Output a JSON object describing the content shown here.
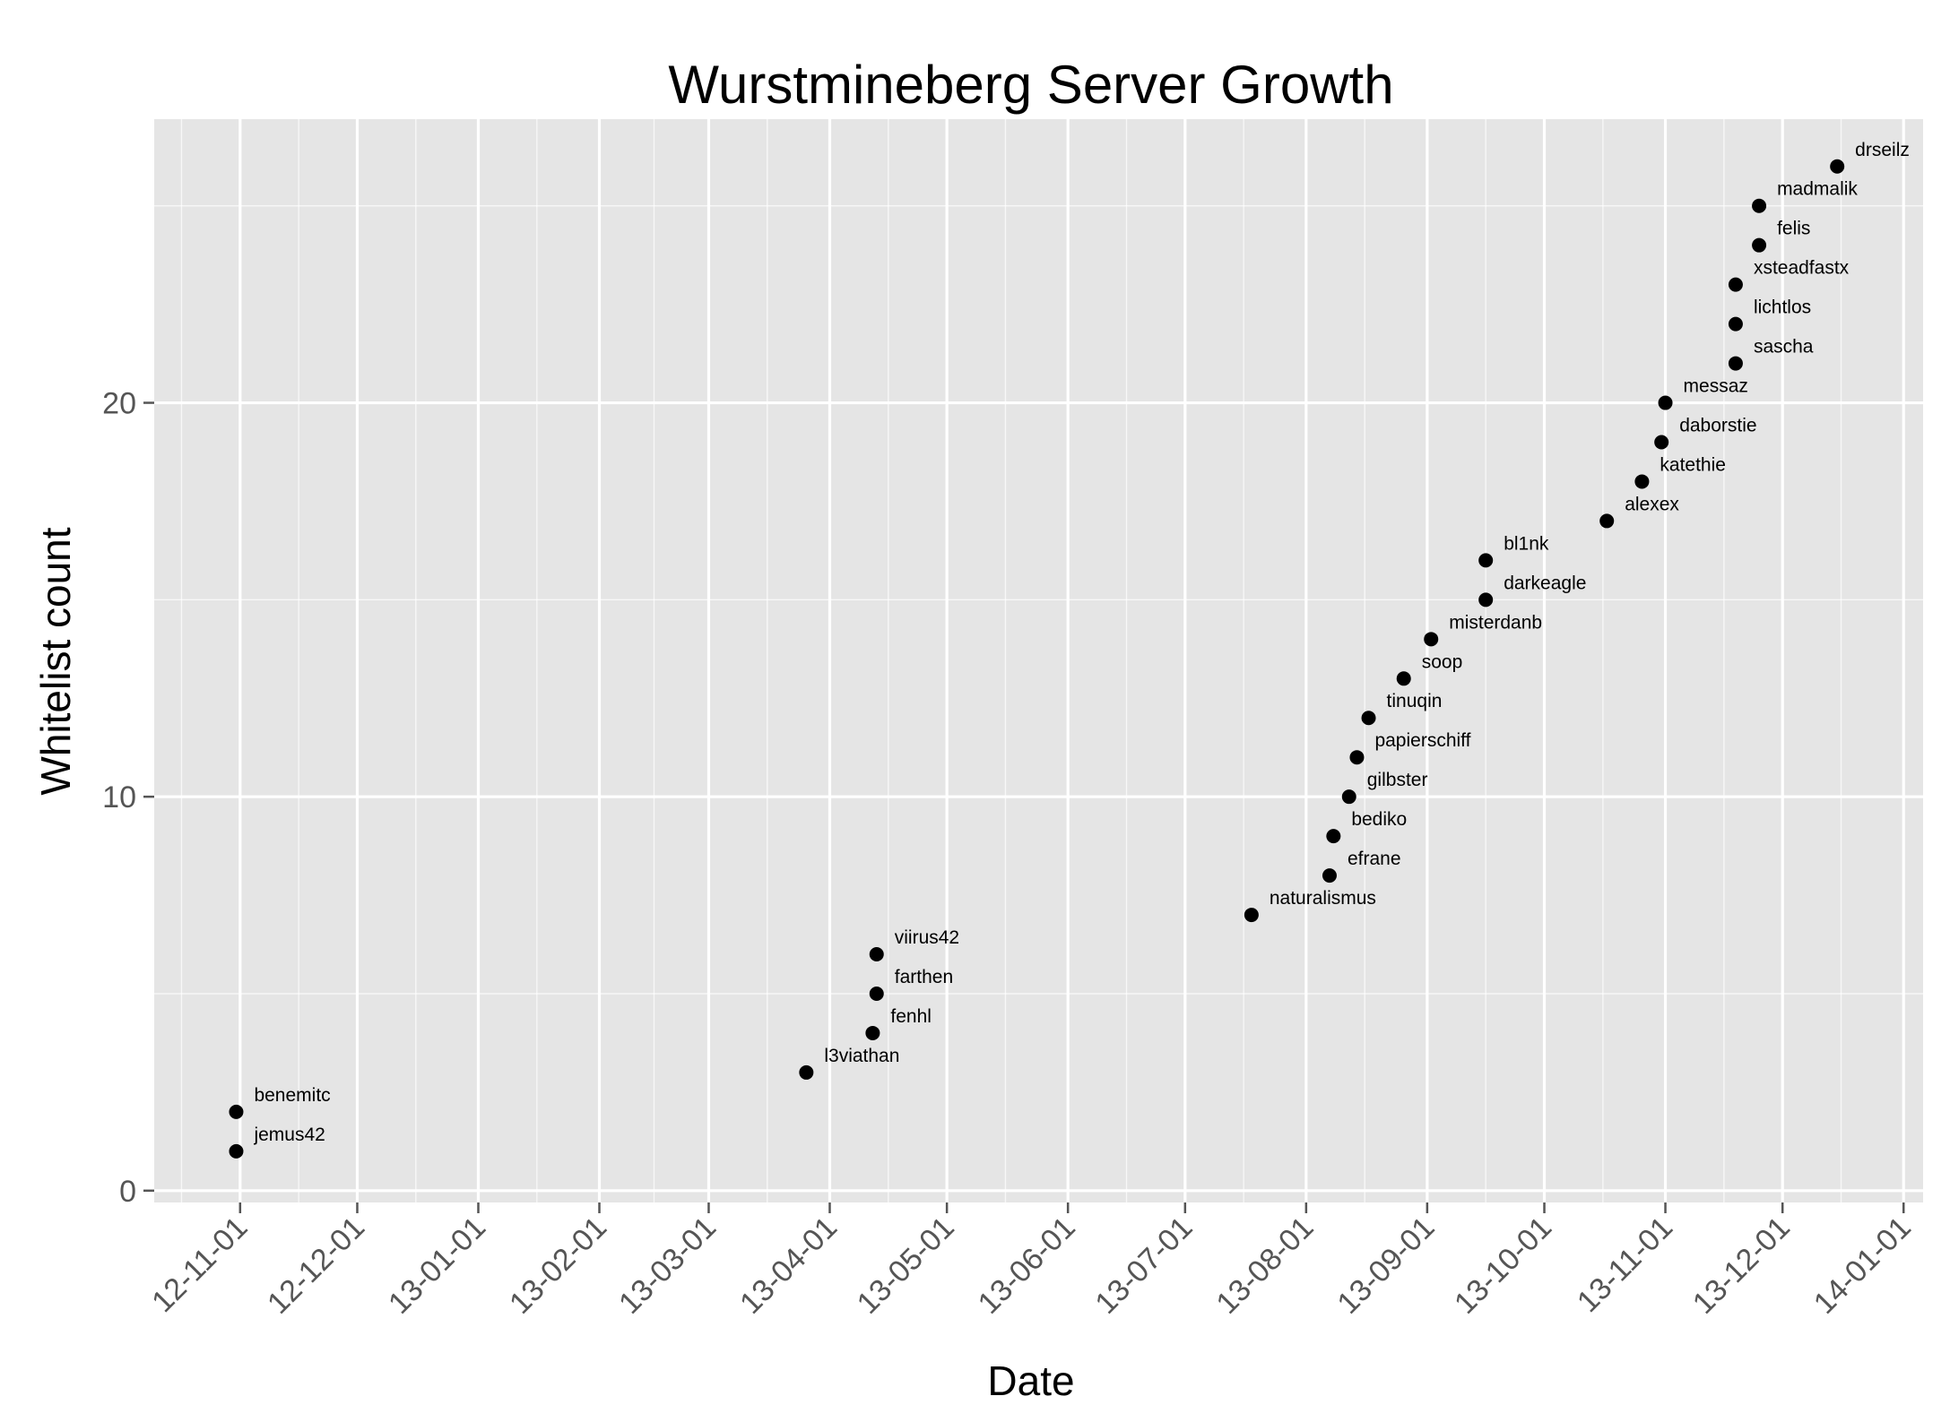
{
  "chart_data": {
    "type": "scatter",
    "title": "Wurstmineberg Server Growth",
    "xlabel": "Date",
    "ylabel": "Whitelist count",
    "xlim": [
      "2012-10-10",
      "2014-01-06"
    ],
    "ylim": [
      -0.3,
      27.2
    ],
    "x_ticks": [
      {
        "date": "2012-11-01",
        "label": "12-11-01"
      },
      {
        "date": "2012-12-01",
        "label": "12-12-01"
      },
      {
        "date": "2013-01-01",
        "label": "13-01-01"
      },
      {
        "date": "2013-02-01",
        "label": "13-02-01"
      },
      {
        "date": "2013-03-01",
        "label": "13-03-01"
      },
      {
        "date": "2013-04-01",
        "label": "13-04-01"
      },
      {
        "date": "2013-05-01",
        "label": "13-05-01"
      },
      {
        "date": "2013-06-01",
        "label": "13-06-01"
      },
      {
        "date": "2013-07-01",
        "label": "13-07-01"
      },
      {
        "date": "2013-08-01",
        "label": "13-08-01"
      },
      {
        "date": "2013-09-01",
        "label": "13-09-01"
      },
      {
        "date": "2013-10-01",
        "label": "13-10-01"
      },
      {
        "date": "2013-11-01",
        "label": "13-11-01"
      },
      {
        "date": "2013-12-01",
        "label": "13-12-01"
      },
      {
        "date": "2014-01-01",
        "label": "14-01-01"
      }
    ],
    "y_ticks": [
      0,
      10,
      20
    ],
    "grid": true,
    "legend": "none",
    "colors": {
      "panel": "#e5e5e5",
      "grid": "#ffffff",
      "point": "#000000",
      "tick_text": "#555555"
    },
    "points": [
      {
        "x": "2012-10-31",
        "y": 1,
        "label": "jemus42"
      },
      {
        "x": "2012-10-31",
        "y": 2,
        "label": "benemitc"
      },
      {
        "x": "2013-03-26",
        "y": 3,
        "label": "l3viathan"
      },
      {
        "x": "2013-04-12",
        "y": 4,
        "label": "fenhl"
      },
      {
        "x": "2013-04-13",
        "y": 5,
        "label": "farthen"
      },
      {
        "x": "2013-04-13",
        "y": 6,
        "label": "viirus42"
      },
      {
        "x": "2013-07-18",
        "y": 7,
        "label": "naturalismus"
      },
      {
        "x": "2013-08-07",
        "y": 8,
        "label": "efrane"
      },
      {
        "x": "2013-08-08",
        "y": 9,
        "label": "bediko"
      },
      {
        "x": "2013-08-12",
        "y": 10,
        "label": "gilbster"
      },
      {
        "x": "2013-08-14",
        "y": 11,
        "label": "papierschiff"
      },
      {
        "x": "2013-08-17",
        "y": 12,
        "label": "tinuqin"
      },
      {
        "x": "2013-08-26",
        "y": 13,
        "label": "soop"
      },
      {
        "x": "2013-09-02",
        "y": 14,
        "label": "misterdanb"
      },
      {
        "x": "2013-09-16",
        "y": 15,
        "label": "darkeagle"
      },
      {
        "x": "2013-09-16",
        "y": 16,
        "label": "bl1nk"
      },
      {
        "x": "2013-10-17",
        "y": 17,
        "label": "alexex"
      },
      {
        "x": "2013-10-26",
        "y": 18,
        "label": "katethie"
      },
      {
        "x": "2013-10-31",
        "y": 19,
        "label": "daborstie"
      },
      {
        "x": "2013-11-01",
        "y": 20,
        "label": "messaz"
      },
      {
        "x": "2013-11-19",
        "y": 21,
        "label": "sascha"
      },
      {
        "x": "2013-11-19",
        "y": 22,
        "label": "lichtlos"
      },
      {
        "x": "2013-11-19",
        "y": 23,
        "label": "xsteadfastx"
      },
      {
        "x": "2013-11-25",
        "y": 24,
        "label": "felis"
      },
      {
        "x": "2013-11-25",
        "y": 25,
        "label": "madmalik"
      },
      {
        "x": "2013-12-15",
        "y": 26,
        "label": "drseilz"
      }
    ]
  }
}
